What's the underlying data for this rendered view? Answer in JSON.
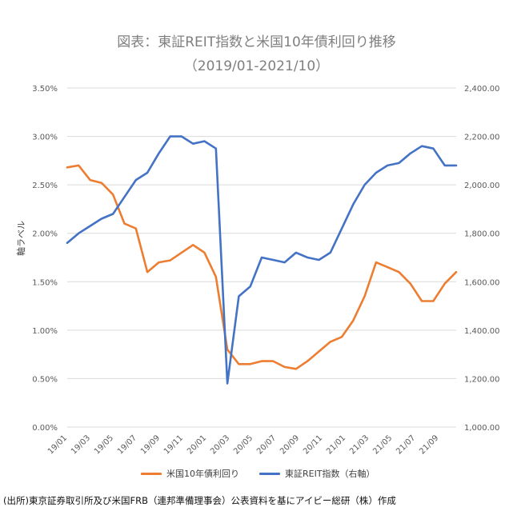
{
  "header": {
    "title": "図表：東証REIT指数と米国10年債利回り推移",
    "subtitle": "（2019/01-2021/10）"
  },
  "chart_data": {
    "type": "line",
    "title": "図表：東証REIT指数と米国10年債利回り推移",
    "subtitle": "（2019/01-2021/10）",
    "ylabel": "軸ラベル",
    "ylim": [
      0,
      0.035
    ],
    "y2lim": [
      1000,
      2400
    ],
    "y_ticks": [
      "0.00%",
      "0.50%",
      "1.00%",
      "1.50%",
      "2.00%",
      "2.50%",
      "3.00%",
      "3.50%"
    ],
    "y2_ticks": [
      "1,000.00",
      "1,200.00",
      "1,400.00",
      "1,600.00",
      "1,800.00",
      "2,000.00",
      "2,200.00",
      "2,400.00"
    ],
    "x_ticks": [
      "19/01",
      "19/03",
      "19/05",
      "19/07",
      "19/09",
      "19/11",
      "20/01",
      "20/03",
      "20/05",
      "20/07",
      "20/09",
      "20/11",
      "21/01",
      "21/03",
      "21/05",
      "21/07",
      "21/09"
    ],
    "grid": true,
    "legend_position": "bottom",
    "series": [
      {
        "name": "米国10年債利回り",
        "axis": "left",
        "color": "#ed7d31",
        "x": [
          "19/01",
          "19/02",
          "19/03",
          "19/04",
          "19/05",
          "19/06",
          "19/07",
          "19/08",
          "19/09",
          "19/10",
          "19/11",
          "19/12",
          "20/01",
          "20/02",
          "20/03a",
          "20/03b",
          "20/04",
          "20/05",
          "20/06",
          "20/07",
          "20/08",
          "20/09",
          "20/10",
          "20/11",
          "20/12",
          "21/01",
          "21/02",
          "21/03",
          "21/04",
          "21/05",
          "21/06",
          "21/07",
          "21/08",
          "21/09",
          "21/10"
        ],
        "values": [
          0.0268,
          0.027,
          0.0255,
          0.0252,
          0.024,
          0.021,
          0.0205,
          0.016,
          0.017,
          0.0172,
          0.018,
          0.0188,
          0.018,
          0.0155,
          0.008,
          0.0065,
          0.0065,
          0.0068,
          0.0068,
          0.0062,
          0.006,
          0.0068,
          0.0078,
          0.0088,
          0.0093,
          0.011,
          0.0135,
          0.017,
          0.0165,
          0.016,
          0.0148,
          0.013,
          0.013,
          0.0148,
          0.016
        ]
      },
      {
        "name": "東証REIT指数（右軸）",
        "axis": "right",
        "color": "#4472c4",
        "x": [
          "19/01",
          "19/02",
          "19/03",
          "19/04",
          "19/05",
          "19/06",
          "19/07",
          "19/08",
          "19/09",
          "19/10",
          "19/11",
          "19/12",
          "20/01",
          "20/02",
          "20/03a",
          "20/03b",
          "20/04",
          "20/05",
          "20/06",
          "20/07",
          "20/08",
          "20/09",
          "20/10",
          "20/11",
          "20/12",
          "21/01",
          "21/02",
          "21/03",
          "21/04",
          "21/05",
          "21/06",
          "21/07",
          "21/08",
          "21/09",
          "21/10"
        ],
        "values": [
          1760,
          1800,
          1830,
          1860,
          1880,
          1950,
          2020,
          2050,
          2130,
          2200,
          2200,
          2170,
          2180,
          2150,
          1180,
          1540,
          1580,
          1700,
          1690,
          1680,
          1720,
          1700,
          1690,
          1720,
          1820,
          1920,
          2000,
          2050,
          2080,
          2090,
          2130,
          2160,
          2150,
          2080,
          2080
        ]
      }
    ]
  },
  "legend": {
    "yield_label": "米国10年債利回り",
    "reit_label": "東証REIT指数（右軸）"
  },
  "footer": {
    "source": "(出所)東京証券取引所及び米国FRB（連邦準備理事会）公表資料を基にアイビー総研（株）作成"
  }
}
